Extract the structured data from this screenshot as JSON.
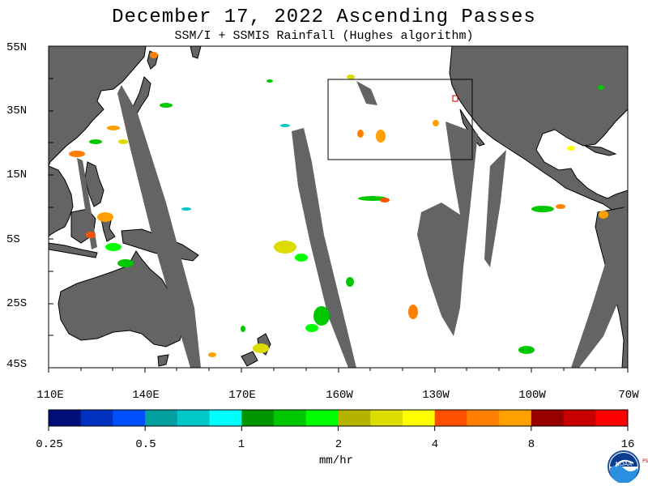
{
  "title": "December 17, 2022  Ascending Passes",
  "subtitle": "SSM/I + SSMIS Rainfall (Hughes algorithm)",
  "lat_labels": [
    "55N",
    "35N",
    "15N",
    "5S",
    "25S",
    "45S"
  ],
  "lon_labels": [
    "110E",
    "140E",
    "170E",
    "160W",
    "130W",
    "100W",
    "70W"
  ],
  "colorbar": {
    "colors": [
      "#000e7a",
      "#0030c0",
      "#0050ff",
      "#00a0a0",
      "#00c8c8",
      "#00ffff",
      "#009600",
      "#00c800",
      "#00ff00",
      "#b4b400",
      "#dcdc00",
      "#ffff00",
      "#ff5000",
      "#ff8000",
      "#ffa000",
      "#960000",
      "#c80000",
      "#ff0000"
    ],
    "tick_labels": [
      "0.25",
      "0.5",
      "1",
      "2",
      "4",
      "8",
      "16"
    ],
    "units": "mm/hr"
  },
  "colors": {
    "land": "#646464",
    "no_data_swath": "#646464",
    "ocean": "#ffffff",
    "coast": "#000000"
  },
  "logo": {
    "text": "NOAA",
    "side_text": "PSL"
  }
}
